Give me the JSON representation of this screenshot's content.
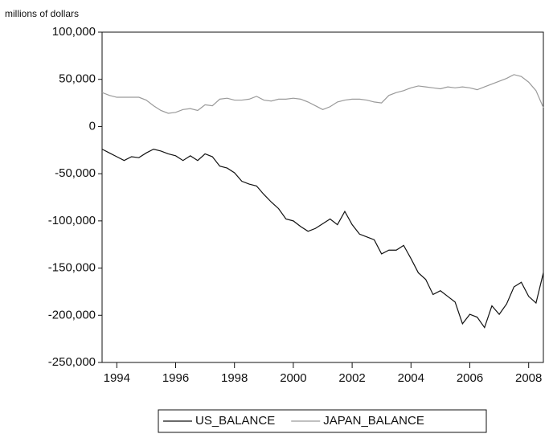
{
  "chart_data": {
    "type": "line",
    "subtitle": "millions of dollars",
    "x": [
      1993.5,
      1993.75,
      1994,
      1994.25,
      1994.5,
      1994.75,
      1995,
      1995.25,
      1995.5,
      1995.75,
      1996,
      1996.25,
      1996.5,
      1996.75,
      1997,
      1997.25,
      1997.5,
      1997.75,
      1998,
      1998.25,
      1998.5,
      1998.75,
      1999,
      1999.25,
      1999.5,
      1999.75,
      2000,
      2000.25,
      2000.5,
      2000.75,
      2001,
      2001.25,
      2001.5,
      2001.75,
      2002,
      2002.25,
      2002.5,
      2002.75,
      2003,
      2003.25,
      2003.5,
      2003.75,
      2004,
      2004.25,
      2004.5,
      2004.75,
      2005,
      2005.25,
      2005.5,
      2005.75,
      2006,
      2006.25,
      2006.5,
      2006.75,
      2007,
      2007.25,
      2007.5,
      2007.75,
      2008,
      2008.25,
      2008.5
    ],
    "series": [
      {
        "name": "US_BALANCE",
        "color": "#111111",
        "values": [
          -24000,
          -28000,
          -32000,
          -36000,
          -32000,
          -33000,
          -28000,
          -24000,
          -26000,
          -29000,
          -31000,
          -36000,
          -31000,
          -36000,
          -29000,
          -32000,
          -42000,
          -44000,
          -49000,
          -58000,
          -61000,
          -63000,
          -72000,
          -80000,
          -87000,
          -98000,
          -100000,
          -106000,
          -111000,
          -108000,
          -103000,
          -98000,
          -104000,
          -90000,
          -104000,
          -114000,
          -117000,
          -120000,
          -135000,
          -131000,
          -131000,
          -126000,
          -140000,
          -155000,
          -162000,
          -178000,
          -174000,
          -180000,
          -186000,
          -209000,
          -199000,
          -202000,
          -213000,
          -190000,
          -199000,
          -188000,
          -170000,
          -165000,
          -180000,
          -187000,
          -155000
        ]
      },
      {
        "name": "JAPAN_BALANCE",
        "color": "#9a9a9a",
        "values": [
          36000,
          33000,
          31000,
          31000,
          31000,
          31000,
          28000,
          22000,
          17000,
          14000,
          15000,
          18000,
          19000,
          17000,
          23000,
          22000,
          29000,
          30000,
          28000,
          28000,
          29000,
          32000,
          28000,
          27000,
          29000,
          29000,
          30000,
          29000,
          26000,
          22000,
          18000,
          21000,
          26000,
          28000,
          29000,
          29000,
          28000,
          26000,
          25000,
          33000,
          36000,
          38000,
          41000,
          43000,
          42000,
          41000,
          40000,
          42000,
          41000,
          42000,
          41000,
          39000,
          42000,
          45000,
          48000,
          51000,
          55000,
          53000,
          47000,
          38000,
          20000
        ]
      }
    ],
    "xlim": [
      1993.5,
      2008.5
    ],
    "xticks": [
      1994,
      1996,
      1998,
      2000,
      2002,
      2004,
      2006,
      2008
    ],
    "ylim": [
      -250000,
      100000
    ],
    "yticks": [
      {
        "value": -250000,
        "label": "-250,000"
      },
      {
        "value": -200000,
        "label": "-200,000"
      },
      {
        "value": -150000,
        "label": "-150,000"
      },
      {
        "value": -100000,
        "label": "-100,000"
      },
      {
        "value": -50000,
        "label": "-50,000"
      },
      0,
      {
        "value": 50000,
        "label": "50,000"
      },
      {
        "value": 100000,
        "label": "100,000"
      }
    ],
    "legend": "bottom"
  }
}
